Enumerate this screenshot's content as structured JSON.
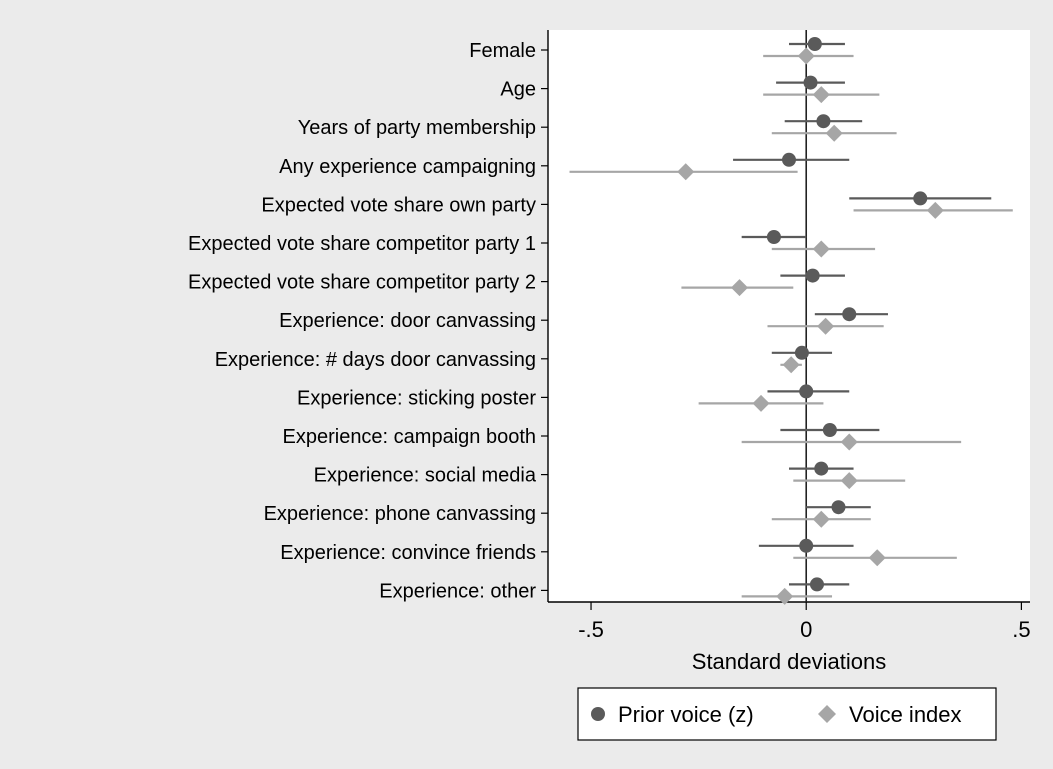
{
  "chart_data": {
    "type": "scatter",
    "subtype": "coefficient-plot",
    "orientation": "horizontal",
    "categories": [
      "Female",
      "Age",
      "Years of party membership",
      "Any experience campaigning",
      "Expected vote share own party",
      "Expected vote share competitor party 1",
      "Expected vote share competitor party 2",
      "Experience: door canvassing",
      "Experience: # days door canvassing",
      "Experience: sticking poster",
      "Experience: campaign booth",
      "Experience: social media",
      "Experience: phone canvassing",
      "Experience: convince friends",
      "Experience: other"
    ],
    "series": [
      {
        "name": "Prior voice (z)",
        "marker": "circle",
        "color": "#5a5a5a",
        "values": [
          0.02,
          0.01,
          0.04,
          -0.04,
          0.265,
          -0.075,
          0.015,
          0.1,
          -0.01,
          0.0,
          0.055,
          0.035,
          0.075,
          0.0,
          0.025
        ],
        "ci_low": [
          -0.04,
          -0.07,
          -0.05,
          -0.17,
          0.1,
          -0.15,
          -0.06,
          0.02,
          -0.08,
          -0.09,
          -0.06,
          -0.04,
          0.0,
          -0.11,
          -0.04
        ],
        "ci_high": [
          0.09,
          0.09,
          0.13,
          0.1,
          0.43,
          0.0,
          0.09,
          0.19,
          0.06,
          0.1,
          0.17,
          0.11,
          0.15,
          0.11,
          0.1
        ]
      },
      {
        "name": "Voice index",
        "marker": "diamond",
        "color": "#a6a6a6",
        "values": [
          0.0,
          0.035,
          0.065,
          -0.28,
          0.3,
          0.035,
          -0.155,
          0.045,
          -0.035,
          -0.105,
          0.1,
          0.1,
          0.035,
          0.165,
          -0.05
        ],
        "ci_low": [
          -0.1,
          -0.1,
          -0.08,
          -0.55,
          0.11,
          -0.08,
          -0.29,
          -0.09,
          -0.06,
          -0.25,
          -0.15,
          -0.03,
          -0.08,
          -0.03,
          -0.15
        ],
        "ci_high": [
          0.11,
          0.17,
          0.21,
          -0.02,
          0.48,
          0.16,
          -0.03,
          0.18,
          -0.01,
          0.04,
          0.36,
          0.23,
          0.15,
          0.35,
          0.06
        ]
      }
    ],
    "xlabel": "Standard deviations",
    "ylabel": "",
    "xlim": [
      -0.6,
      0.52
    ],
    "xticks": [
      -0.5,
      0,
      0.5
    ],
    "xtick_labels": [
      "-.5",
      "0",
      ".5"
    ],
    "reference_line": 0,
    "grid": false,
    "legend": {
      "position": "bottom",
      "entries": [
        "Prior voice (z)",
        "Voice index"
      ]
    },
    "colors": {
      "background": "#ebebeb",
      "plot_background": "#ffffff",
      "axis": "#000000"
    }
  }
}
